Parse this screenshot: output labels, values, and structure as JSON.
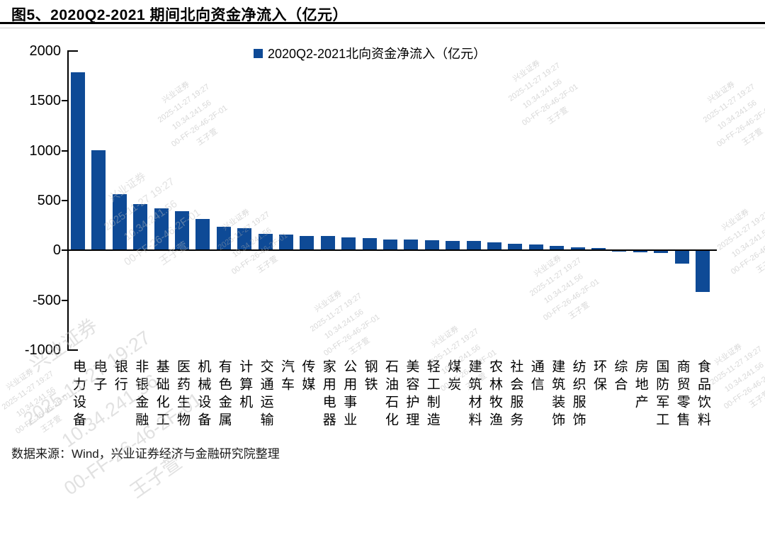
{
  "header": {
    "title": "图5、2020Q2-2021 期间北向资金净流入（亿元）"
  },
  "legend": {
    "label": "2020Q2-2021北向资金净流入（亿元）"
  },
  "footer": {
    "source": "数据来源：Wind，兴业证券经济与金融研究院整理"
  },
  "watermark": {
    "lines": [
      "兴业证券",
      "2025-11-27 19:27",
      "10.34.241.56",
      "00-FF-26-46-2F-01",
      "王子萱"
    ]
  },
  "chart_data": {
    "type": "bar",
    "title": "图5、2020Q2-2021 期间北向资金净流入（亿元）",
    "legend_entries": [
      "2020Q2-2021北向资金净流入（亿元）"
    ],
    "legend_position": "top-center",
    "bar_color": "#0E4A96",
    "grid": false,
    "ylim": [
      -1000,
      2000
    ],
    "yticks": [
      2000,
      1500,
      1000,
      500,
      0,
      -500,
      -1000
    ],
    "xlabel": "",
    "ylabel": "",
    "categories": [
      "电力设备",
      "电子",
      "银行",
      "非银金融",
      "基础化工",
      "医药生物",
      "机械设备",
      "有色金属",
      "计算机",
      "交通运输",
      "汽车",
      "传媒",
      "家用电器",
      "公用事业",
      "钢铁",
      "石油石化",
      "美容护理",
      "轻工制造",
      "煤炭",
      "建筑材料",
      "农林牧渔",
      "社会服务",
      "通信",
      "建筑装饰",
      "纺织服饰",
      "环保",
      "综合",
      "房地产",
      "国防军工",
      "商贸零售",
      "食品饮料"
    ],
    "values": [
      1780,
      1000,
      560,
      460,
      415,
      385,
      310,
      230,
      215,
      160,
      155,
      140,
      135,
      120,
      115,
      105,
      100,
      95,
      90,
      85,
      75,
      60,
      50,
      35,
      25,
      15,
      -5,
      -10,
      -20,
      -125,
      -410
    ]
  }
}
